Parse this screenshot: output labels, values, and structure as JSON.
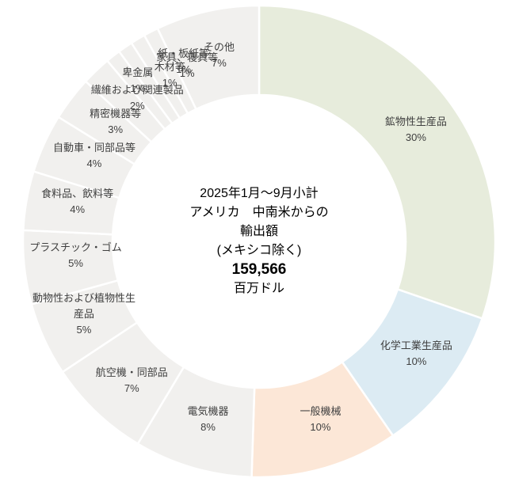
{
  "chart_data": {
    "type": "pie",
    "subtype": "doughnut",
    "title": "2025年1月〜9月小計 アメリカ 中南米からの輸出額 (メキシコ除く)",
    "center_lines": [
      "2025年1月〜9月小計",
      "アメリカ　中南米からの",
      "輸出額",
      "(メキシコ除く)"
    ],
    "center_value": "159,566",
    "center_unit": "百万ドル",
    "legend_position": "none",
    "label_color": "#3f3f3f",
    "separator_color": "#ffffff",
    "background_color": "#ffffff",
    "slices": [
      {
        "label": "鉱物性生産品",
        "percent": 30,
        "color": "#e7ecdc"
      },
      {
        "label": "化学工業生産品",
        "percent": 10,
        "color": "#dcebf3"
      },
      {
        "label": "一般機械",
        "percent": 10,
        "color": "#fce7d7"
      },
      {
        "label": "電気機器",
        "percent": 8,
        "color": "#f1f0ee"
      },
      {
        "label": "航空機・同部品",
        "percent": 7,
        "color": "#f1f0ee"
      },
      {
        "label": "動物性および植物性生産品",
        "percent": 5,
        "color": "#f1f0ee"
      },
      {
        "label": "プラスチック・ゴム",
        "percent": 5,
        "color": "#f1f0ee"
      },
      {
        "label": "食料品、飲料等",
        "percent": 4,
        "color": "#f1f0ee"
      },
      {
        "label": "自動車・同部品等",
        "percent": 4,
        "color": "#f1f0ee"
      },
      {
        "label": "精密機器等",
        "percent": 3,
        "color": "#f1f0ee"
      },
      {
        "label": "繊維および関連製品",
        "percent": 2,
        "color": "#f1f0ee"
      },
      {
        "label": "卑金属",
        "percent": 1,
        "color": "#f1f0ee"
      },
      {
        "label": "木材等",
        "percent": 1,
        "color": "#f1f0ee"
      },
      {
        "label": "家具、寝具等",
        "percent": 1,
        "color": "#f1f0ee"
      },
      {
        "label": "紙・板紙等",
        "percent": 1,
        "color": "#f1f0ee"
      },
      {
        "label": "その他",
        "percent": 7,
        "color": "#f1f0ee"
      }
    ]
  }
}
